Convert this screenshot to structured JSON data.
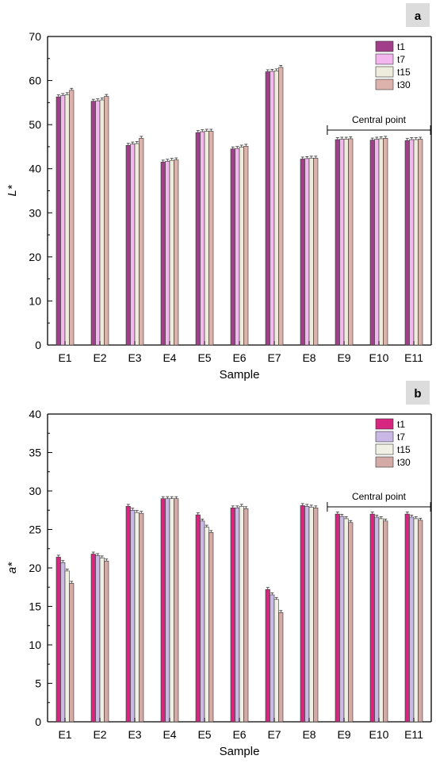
{
  "chart_data": [
    {
      "type": "bar",
      "panel_label": "a",
      "ylabel": "L*",
      "xlabel": "Sample",
      "ylim": [
        0,
        70
      ],
      "yticks": [
        0,
        10,
        20,
        30,
        40,
        50,
        60,
        70
      ],
      "categories": [
        "E1",
        "E2",
        "E3",
        "E4",
        "E5",
        "E6",
        "E7",
        "E8",
        "E9",
        "E10",
        "E11"
      ],
      "series": [
        {
          "name": "t1",
          "color": "#a23f8a",
          "values": [
            56.3,
            55.3,
            45.3,
            41.5,
            48.2,
            44.5,
            62.0,
            42.2,
            46.6,
            46.5,
            46.4
          ]
        },
        {
          "name": "t7",
          "color": "#f4b6ee",
          "values": [
            56.6,
            55.4,
            45.6,
            41.7,
            48.4,
            44.6,
            62.1,
            42.3,
            46.7,
            46.7,
            46.6
          ]
        },
        {
          "name": "t15",
          "color": "#eeecdc",
          "values": [
            56.8,
            55.6,
            45.7,
            41.9,
            48.5,
            44.9,
            62.2,
            42.4,
            46.7,
            46.8,
            46.6
          ]
        },
        {
          "name": "t30",
          "color": "#ddb2ac",
          "values": [
            57.8,
            56.4,
            46.9,
            42.0,
            48.5,
            45.1,
            63.0,
            42.4,
            46.8,
            46.9,
            46.7
          ]
        }
      ],
      "legend": "top-right",
      "annotation": {
        "text": "Central point",
        "from": "E9",
        "to": "E11"
      }
    },
    {
      "type": "bar",
      "panel_label": "b",
      "ylabel": "a*",
      "xlabel": "Sample",
      "ylim": [
        0,
        40
      ],
      "yticks": [
        0,
        5,
        10,
        15,
        20,
        25,
        30,
        35,
        40
      ],
      "categories": [
        "E1",
        "E2",
        "E3",
        "E4",
        "E5",
        "E6",
        "E7",
        "E8",
        "E9",
        "E10",
        "E11"
      ],
      "series": [
        {
          "name": "t1",
          "color": "#d6267f",
          "values": [
            21.4,
            21.8,
            28.0,
            29.0,
            26.9,
            27.8,
            17.2,
            28.1,
            27.0,
            27.0,
            27.0
          ]
        },
        {
          "name": "t7",
          "color": "#c9b8e6",
          "values": [
            20.7,
            21.6,
            27.5,
            29.0,
            26.1,
            27.8,
            16.5,
            28.0,
            26.7,
            26.6,
            26.6
          ]
        },
        {
          "name": "t15",
          "color": "#f0f1e4",
          "values": [
            19.6,
            21.3,
            27.2,
            29.0,
            25.3,
            28.0,
            15.9,
            27.9,
            26.4,
            26.4,
            26.4
          ]
        },
        {
          "name": "t30",
          "color": "#d3aaa6",
          "values": [
            18.0,
            20.9,
            27.1,
            29.0,
            24.6,
            27.7,
            14.2,
            27.8,
            25.9,
            26.1,
            26.2
          ]
        }
      ],
      "legend": "top-right",
      "annotation": {
        "text": "Central point",
        "from": "E9",
        "to": "E11"
      }
    }
  ]
}
